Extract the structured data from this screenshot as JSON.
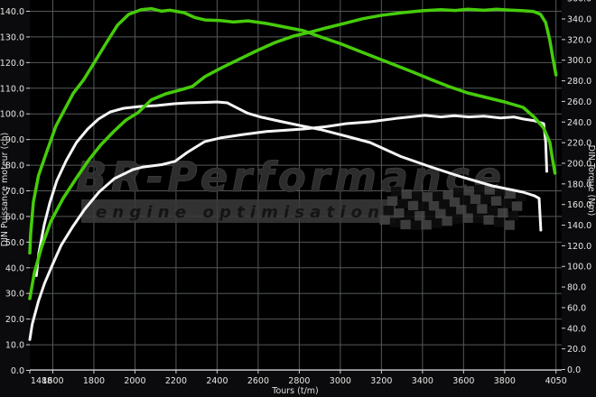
{
  "page": {
    "background": "#0b0b0d",
    "plot_background": "#000000"
  },
  "colors": {
    "tuned_curve": "#46cc0a",
    "stock_curve": "#f5f5f5",
    "grid": "#54585a",
    "axis_line": "#cfcfcf",
    "tick_text": "#e6e6e6",
    "watermark_text": "#2f2f2f",
    "watermark_band": "#3b3b3b",
    "flag_light": "#454545",
    "flag_dark": "#0e0e0e"
  },
  "watermark": {
    "title": "BR-Performance",
    "subtitle": "engine optimisation"
  },
  "chart_data": {
    "type": "line",
    "grid": true,
    "legend_position": "none",
    "x_axis": {
      "label": "Tours (t/m)",
      "min": 1488,
      "max": 4050,
      "ticks": [
        "1488",
        "1600",
        "1800",
        "2000",
        "2200",
        "2400",
        "2600",
        "2800",
        "3000",
        "3200",
        "3400",
        "3600",
        "3800",
        "4050"
      ]
    },
    "y_left": {
      "label": "DIN Puissance moteur (ch)",
      "min": 0,
      "max": 140,
      "step": 10,
      "ticks": [
        "0.0",
        "10.0",
        "20.0",
        "30.0",
        "40.0",
        "50.0",
        "60.0",
        "70.0",
        "80.0",
        "90.0",
        "100.0",
        "110.0",
        "120.0",
        "130.0",
        "140.0"
      ]
    },
    "y_right": {
      "label": "DIN Torque (Nm)",
      "min": 0,
      "max": 360,
      "step": 20,
      "ticks": [
        "0.0",
        "20.0",
        "40.0",
        "60.0",
        "80.0",
        "100.0",
        "120.0",
        "140.0",
        "160.0",
        "180.0",
        "200.0",
        "220.0",
        "240.0",
        "260.0",
        "280.0",
        "300.0",
        "320.0",
        "340.0",
        "360.0"
      ]
    },
    "series": [
      {
        "name": "torque-stock",
        "axis": "right",
        "color": "#f5f5f5",
        "width": 3,
        "points": [
          [
            1520,
            91
          ],
          [
            1532,
            113
          ],
          [
            1558,
            140
          ],
          [
            1585,
            161.5
          ],
          [
            1620,
            183.3
          ],
          [
            1665,
            202.6
          ],
          [
            1715,
            220.1
          ],
          [
            1770,
            233.2
          ],
          [
            1822,
            242.9
          ],
          [
            1880,
            249.9
          ],
          [
            1945,
            253.4
          ],
          [
            2025,
            255.1
          ],
          [
            2105,
            256
          ],
          [
            2190,
            257.7
          ],
          [
            2260,
            258.6
          ],
          [
            2330,
            259
          ],
          [
            2400,
            259.5
          ],
          [
            2450,
            258.6
          ],
          [
            2495,
            254
          ],
          [
            2550,
            248.5
          ],
          [
            2610,
            245
          ],
          [
            2715,
            240.3
          ],
          [
            2820,
            235.9
          ],
          [
            2910,
            232.4
          ],
          [
            3030,
            226.2
          ],
          [
            3145,
            220.1
          ],
          [
            3295,
            206.5
          ],
          [
            3440,
            196.5
          ],
          [
            3590,
            186.8
          ],
          [
            3740,
            178.1
          ],
          [
            3890,
            172
          ],
          [
            3945,
            168.5
          ],
          [
            3968,
            166
          ],
          [
            3972,
            150
          ],
          [
            3976,
            135.2
          ]
        ]
      },
      {
        "name": "power-stock",
        "axis": "left",
        "color": "#f5f5f5",
        "width": 3,
        "points": [
          [
            1488,
            12
          ],
          [
            1500,
            18
          ],
          [
            1530,
            27
          ],
          [
            1560,
            34
          ],
          [
            1600,
            41.5
          ],
          [
            1640,
            48.7
          ],
          [
            1695,
            55.8
          ],
          [
            1755,
            62.8
          ],
          [
            1825,
            69.5
          ],
          [
            1900,
            74.8
          ],
          [
            1990,
            78.3
          ],
          [
            2040,
            79.3
          ],
          [
            2130,
            80.2
          ],
          [
            2195,
            81.5
          ],
          [
            2255,
            85
          ],
          [
            2340,
            89.2
          ],
          [
            2415,
            90.6
          ],
          [
            2530,
            92
          ],
          [
            2640,
            93.1
          ],
          [
            2820,
            94.1
          ],
          [
            2930,
            95
          ],
          [
            3030,
            96.2
          ],
          [
            3145,
            96.9
          ],
          [
            3270,
            98.2
          ],
          [
            3410,
            99.4
          ],
          [
            3490,
            98.8
          ],
          [
            3555,
            99.3
          ],
          [
            3625,
            98.8
          ],
          [
            3700,
            99.1
          ],
          [
            3780,
            98.4
          ],
          [
            3845,
            98.8
          ],
          [
            3890,
            98
          ],
          [
            3940,
            97.4
          ],
          [
            3990,
            96.2
          ],
          [
            4000,
            89
          ],
          [
            4005,
            77.6
          ]
        ]
      },
      {
        "name": "torque-tuned",
        "axis": "right",
        "color": "#46cc0a",
        "width": 3.5,
        "points": [
          [
            1488,
            113
          ],
          [
            1492,
            131
          ],
          [
            1505,
            162
          ],
          [
            1530,
            188
          ],
          [
            1570,
            211
          ],
          [
            1615,
            236
          ],
          [
            1660,
            253
          ],
          [
            1700,
            268
          ],
          [
            1750,
            281
          ],
          [
            1800,
            297
          ],
          [
            1858,
            316
          ],
          [
            1915,
            334
          ],
          [
            1970,
            344.5
          ],
          [
            2030,
            349
          ],
          [
            2080,
            350
          ],
          [
            2130,
            347.5
          ],
          [
            2170,
            348.5
          ],
          [
            2240,
            346
          ],
          [
            2290,
            341.5
          ],
          [
            2340,
            339
          ],
          [
            2415,
            338.5
          ],
          [
            2480,
            337
          ],
          [
            2550,
            338.2
          ],
          [
            2640,
            335.6
          ],
          [
            2730,
            332.1
          ],
          [
            2820,
            328.6
          ],
          [
            2905,
            322.5
          ],
          [
            2995,
            316.4
          ],
          [
            3085,
            309.4
          ],
          [
            3175,
            302.4
          ],
          [
            3265,
            295.4
          ],
          [
            3355,
            288.4
          ],
          [
            3440,
            281.4
          ],
          [
            3530,
            274.4
          ],
          [
            3620,
            268.2
          ],
          [
            3710,
            263.9
          ],
          [
            3800,
            259.5
          ],
          [
            3890,
            254.2
          ],
          [
            3945,
            244.6
          ],
          [
            3990,
            234.1
          ],
          [
            4020,
            220.1
          ],
          [
            4032,
            205.2
          ],
          [
            4045,
            190.4
          ]
        ]
      },
      {
        "name": "power-tuned",
        "axis": "left",
        "color": "#46cc0a",
        "width": 3.5,
        "points": [
          [
            1488,
            28
          ],
          [
            1510,
            38
          ],
          [
            1545,
            48
          ],
          [
            1590,
            58
          ],
          [
            1650,
            67
          ],
          [
            1715,
            75
          ],
          [
            1775,
            82
          ],
          [
            1835,
            88
          ],
          [
            1895,
            93
          ],
          [
            1955,
            97.5
          ],
          [
            2015,
            100.5
          ],
          [
            2080,
            105.5
          ],
          [
            2150,
            107.8
          ],
          [
            2215,
            109.2
          ],
          [
            2280,
            110.7
          ],
          [
            2340,
            114.5
          ],
          [
            2415,
            117.7
          ],
          [
            2505,
            121.2
          ],
          [
            2595,
            124.7
          ],
          [
            2685,
            127.9
          ],
          [
            2775,
            130.4
          ],
          [
            2850,
            131.8
          ],
          [
            2930,
            133.5
          ],
          [
            3020,
            135.3
          ],
          [
            3110,
            137.1
          ],
          [
            3205,
            138.5
          ],
          [
            3310,
            139.5
          ],
          [
            3400,
            140.2
          ],
          [
            3490,
            140.6
          ],
          [
            3560,
            140.3
          ],
          [
            3620,
            140.8
          ],
          [
            3700,
            140.4
          ],
          [
            3760,
            140.8
          ],
          [
            3820,
            140.5
          ],
          [
            3890,
            140.2
          ],
          [
            3940,
            139.9
          ],
          [
            3975,
            138.8
          ],
          [
            4000,
            135.6
          ],
          [
            4020,
            128.6
          ],
          [
            4035,
            121.6
          ],
          [
            4050,
            115.2
          ]
        ]
      }
    ]
  }
}
